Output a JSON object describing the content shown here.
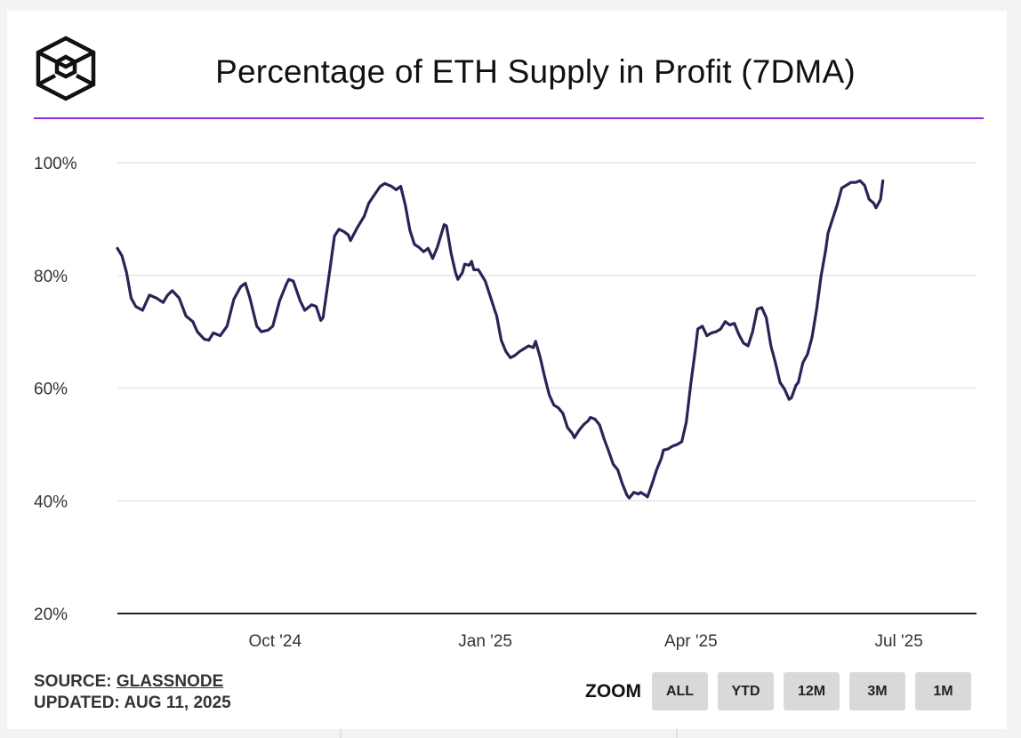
{
  "colors": {
    "accent_rule": "#8a2be2",
    "series_line": "#2a2356",
    "grid": "#e6e6e6",
    "axis": "#222222"
  },
  "header": {
    "logo_icon": "the-block-cube-icon",
    "title": "Percentage of ETH Supply in Profit (7DMA)"
  },
  "footer": {
    "source_prefix": "SOURCE: ",
    "source_link": "GLASSNODE",
    "updated": "UPDATED: AUG 11, 2025"
  },
  "zoom": {
    "label": "ZOOM",
    "buttons": [
      "ALL",
      "YTD",
      "12M",
      "3M",
      "1M"
    ]
  },
  "chart_data": {
    "type": "line",
    "title": "Percentage of ETH Supply in Profit (7DMA)",
    "xlabel": "",
    "ylabel": "",
    "ylim": [
      20,
      100
    ],
    "y_ticks": [
      20,
      40,
      60,
      80,
      100
    ],
    "y_tick_labels": [
      "20%",
      "40%",
      "60%",
      "80%",
      "100%"
    ],
    "x_ticks": [
      {
        "label": "Oct '24",
        "day": 69
      },
      {
        "label": "Jan '25",
        "day": 161
      },
      {
        "label": "Apr '25",
        "day": 251
      },
      {
        "label": "Jul '25",
        "day": 342
      }
    ],
    "x_range_days": [
      0,
      376
    ],
    "x_start_date": "2024-07-24",
    "series": [
      {
        "name": "ETH Supply in Profit (7DMA)",
        "points": [
          [
            0,
            84.8
          ],
          [
            2,
            83.5
          ],
          [
            4,
            80.5
          ],
          [
            6,
            76.0
          ],
          [
            8,
            74.5
          ],
          [
            11,
            73.8
          ],
          [
            14,
            76.5
          ],
          [
            17,
            76.0
          ],
          [
            20,
            75.2
          ],
          [
            22,
            76.5
          ],
          [
            24,
            77.3
          ],
          [
            27,
            76.0
          ],
          [
            30,
            72.8
          ],
          [
            33,
            71.8
          ],
          [
            35,
            70.0
          ],
          [
            38,
            68.7
          ],
          [
            40,
            68.5
          ],
          [
            42,
            69.8
          ],
          [
            45,
            69.3
          ],
          [
            48,
            71.0
          ],
          [
            51,
            75.8
          ],
          [
            54,
            78.0
          ],
          [
            56,
            78.6
          ],
          [
            58,
            76.0
          ],
          [
            61,
            71.0
          ],
          [
            63,
            70.0
          ],
          [
            66,
            70.3
          ],
          [
            68,
            71.0
          ],
          [
            71,
            75.5
          ],
          [
            74,
            78.5
          ],
          [
            75,
            79.3
          ],
          [
            77,
            79.0
          ],
          [
            80,
            75.5
          ],
          [
            82,
            73.8
          ],
          [
            85,
            74.8
          ],
          [
            87,
            74.5
          ],
          [
            89,
            72.0
          ],
          [
            90,
            72.5
          ],
          [
            93,
            81.0
          ],
          [
            95,
            87.0
          ],
          [
            97,
            88.2
          ],
          [
            99,
            87.8
          ],
          [
            101,
            87.2
          ],
          [
            102,
            86.2
          ],
          [
            105,
            88.5
          ],
          [
            108,
            90.5
          ],
          [
            110,
            92.8
          ],
          [
            112,
            94.0
          ],
          [
            115,
            95.8
          ],
          [
            117,
            96.3
          ],
          [
            120,
            95.8
          ],
          [
            122,
            95.2
          ],
          [
            124,
            95.8
          ],
          [
            126,
            92.5
          ],
          [
            128,
            88.0
          ],
          [
            130,
            85.5
          ],
          [
            132,
            85.0
          ],
          [
            134,
            84.2
          ],
          [
            136,
            84.8
          ],
          [
            138,
            83.0
          ],
          [
            140,
            85.0
          ],
          [
            143,
            89.0
          ],
          [
            144,
            88.8
          ],
          [
            146,
            84.0
          ],
          [
            148,
            80.5
          ],
          [
            149,
            79.3
          ],
          [
            151,
            80.5
          ],
          [
            152,
            82.0
          ],
          [
            154,
            81.8
          ],
          [
            155,
            82.5
          ],
          [
            156,
            81.0
          ],
          [
            158,
            81.0
          ],
          [
            161,
            79.0
          ],
          [
            163,
            76.5
          ],
          [
            165,
            74.0
          ],
          [
            166,
            72.8
          ],
          [
            168,
            68.5
          ],
          [
            170,
            66.5
          ],
          [
            172,
            65.4
          ],
          [
            174,
            65.8
          ],
          [
            176,
            66.5
          ],
          [
            178,
            67.0
          ],
          [
            180,
            67.5
          ],
          [
            182,
            67.2
          ],
          [
            183,
            68.3
          ],
          [
            185,
            65.5
          ],
          [
            187,
            62.0
          ],
          [
            189,
            58.8
          ],
          [
            191,
            57.0
          ],
          [
            193,
            56.5
          ],
          [
            195,
            55.5
          ],
          [
            197,
            53.0
          ],
          [
            199,
            52.0
          ],
          [
            200,
            51.2
          ],
          [
            202,
            52.5
          ],
          [
            204,
            53.5
          ],
          [
            206,
            54.2
          ],
          [
            207,
            54.8
          ],
          [
            209,
            54.5
          ],
          [
            211,
            53.5
          ],
          [
            213,
            51.0
          ],
          [
            215,
            48.8
          ],
          [
            217,
            46.5
          ],
          [
            219,
            45.5
          ],
          [
            221,
            43.0
          ],
          [
            223,
            41.0
          ],
          [
            224,
            40.5
          ],
          [
            226,
            41.5
          ],
          [
            228,
            41.2
          ],
          [
            229,
            41.5
          ],
          [
            231,
            41.0
          ],
          [
            232,
            40.7
          ],
          [
            234,
            43.0
          ],
          [
            236,
            45.5
          ],
          [
            238,
            47.5
          ],
          [
            239,
            49.0
          ],
          [
            241,
            49.2
          ],
          [
            243,
            49.7
          ],
          [
            245,
            50.0
          ],
          [
            247,
            50.5
          ],
          [
            249,
            54.0
          ],
          [
            251,
            61.0
          ],
          [
            253,
            67.0
          ],
          [
            254,
            70.5
          ],
          [
            256,
            71.0
          ],
          [
            258,
            69.3
          ],
          [
            260,
            69.8
          ],
          [
            262,
            70.0
          ],
          [
            264,
            70.5
          ],
          [
            266,
            71.8
          ],
          [
            268,
            71.2
          ],
          [
            270,
            71.5
          ],
          [
            272,
            69.5
          ],
          [
            274,
            68.0
          ],
          [
            276,
            67.5
          ],
          [
            278,
            70.0
          ],
          [
            280,
            74.0
          ],
          [
            282,
            74.3
          ],
          [
            284,
            72.5
          ],
          [
            286,
            67.5
          ],
          [
            288,
            64.5
          ],
          [
            290,
            61.0
          ],
          [
            292,
            59.8
          ],
          [
            294,
            58.0
          ],
          [
            295,
            58.3
          ],
          [
            297,
            60.5
          ],
          [
            298,
            61.0
          ],
          [
            300,
            64.5
          ],
          [
            302,
            66.0
          ],
          [
            304,
            69.0
          ],
          [
            306,
            74.0
          ],
          [
            308,
            80.0
          ],
          [
            310,
            84.5
          ],
          [
            311,
            87.5
          ],
          [
            313,
            90.0
          ],
          [
            315,
            92.5
          ],
          [
            317,
            95.5
          ],
          [
            319,
            96.0
          ],
          [
            321,
            96.5
          ],
          [
            323,
            96.5
          ],
          [
            325,
            96.8
          ],
          [
            327,
            96.0
          ],
          [
            329,
            93.5
          ],
          [
            331,
            92.8
          ],
          [
            332,
            92.0
          ],
          [
            334,
            93.5
          ],
          [
            335,
            96.8
          ]
        ]
      }
    ]
  }
}
